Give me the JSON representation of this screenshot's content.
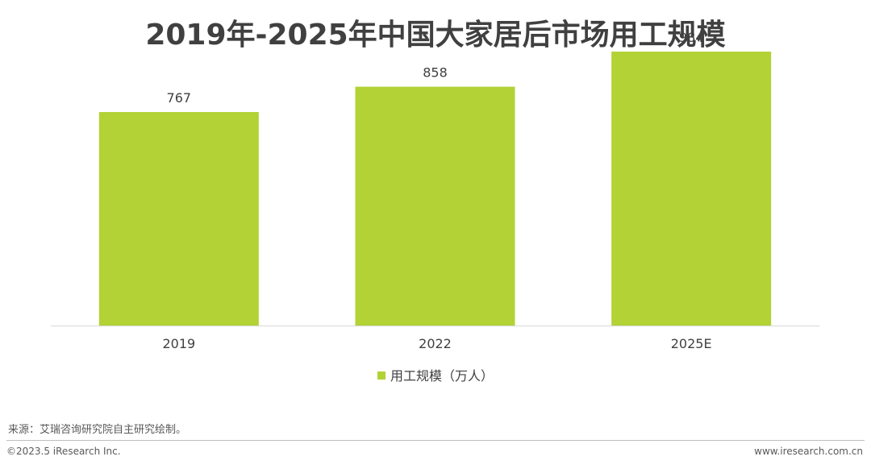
{
  "title": "2019年-2025年中国大家居后市场用工规模",
  "legend_label": "用工规模（万人）",
  "source": "来源：艾瑞咨询研究院自主研究绘制。",
  "copyright": "©2023.5 iResearch Inc.",
  "website": "www.iresearch.com.cn",
  "colors": {
    "bar": "#b2d235",
    "axis": "#d9d9d9",
    "text": "#404040"
  },
  "chart_data": {
    "type": "bar",
    "title": "2019年-2025年中国大家居后市场用工规模",
    "categories": [
      "2019",
      "2022",
      "2025E"
    ],
    "series": [
      {
        "name": "用工规模（万人）",
        "values": [
          767,
          858,
          984
        ]
      }
    ],
    "ylim": [
      0,
      1100
    ],
    "grid": false,
    "legend_position": "bottom"
  }
}
